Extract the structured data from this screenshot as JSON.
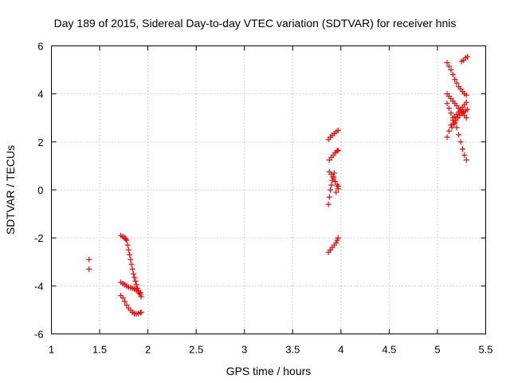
{
  "chart_data": {
    "type": "scatter",
    "title": "Day 189 of 2015, Sidereal Day-to-day VTEC variation (SDTVAR) for receiver hnis",
    "xlabel": "GPS time / hours",
    "ylabel": "SDTVAR / TECUs",
    "xlim": [
      1,
      5.5
    ],
    "ylim": [
      -6,
      6
    ],
    "xticks": [
      "1",
      "1.5",
      "2",
      "2.5",
      "3",
      "3.5",
      "4",
      "4.5",
      "5",
      "5.5"
    ],
    "yticks": [
      "-6",
      "-4",
      "-2",
      "0",
      "2",
      "4",
      "6"
    ],
    "grid": true,
    "marker": "+",
    "marker_color": "#ff0000",
    "series": [
      {
        "points": [
          [
            1.39,
            -2.9
          ],
          [
            1.39,
            -3.3
          ],
          [
            1.72,
            -1.9
          ],
          [
            1.74,
            -1.95
          ],
          [
            1.76,
            -2.0
          ],
          [
            1.77,
            -2.05
          ],
          [
            1.78,
            -2.1
          ],
          [
            1.79,
            -2.3
          ],
          [
            1.8,
            -2.5
          ],
          [
            1.81,
            -2.7
          ],
          [
            1.82,
            -2.9
          ],
          [
            1.83,
            -3.1
          ],
          [
            1.84,
            -3.3
          ],
          [
            1.85,
            -3.5
          ],
          [
            1.86,
            -3.65
          ],
          [
            1.87,
            -3.8
          ],
          [
            1.88,
            -3.95
          ],
          [
            1.89,
            -4.1
          ],
          [
            1.9,
            -4.2
          ],
          [
            1.91,
            -4.3
          ],
          [
            1.92,
            -4.35
          ],
          [
            1.93,
            -4.45
          ],
          [
            1.72,
            -3.85
          ],
          [
            1.74,
            -3.9
          ],
          [
            1.76,
            -3.95
          ],
          [
            1.78,
            -4.0
          ],
          [
            1.8,
            -4.05
          ],
          [
            1.82,
            -4.08
          ],
          [
            1.84,
            -4.1
          ],
          [
            1.86,
            -4.13
          ],
          [
            1.88,
            -4.17
          ],
          [
            1.9,
            -4.22
          ],
          [
            1.92,
            -4.28
          ],
          [
            1.72,
            -4.4
          ],
          [
            1.74,
            -4.5
          ],
          [
            1.76,
            -4.65
          ],
          [
            1.78,
            -4.8
          ],
          [
            1.8,
            -4.92
          ],
          [
            1.82,
            -5.02
          ],
          [
            1.84,
            -5.1
          ],
          [
            1.86,
            -5.15
          ],
          [
            1.88,
            -5.17
          ],
          [
            1.9,
            -5.15
          ],
          [
            1.92,
            -5.12
          ],
          [
            1.93,
            -5.1
          ],
          [
            3.87,
            -2.6
          ],
          [
            3.89,
            -2.5
          ],
          [
            3.91,
            -2.4
          ],
          [
            3.93,
            -2.3
          ],
          [
            3.95,
            -2.2
          ],
          [
            3.96,
            -2.1
          ],
          [
            3.97,
            -2.0
          ],
          [
            3.87,
            -0.6
          ],
          [
            3.88,
            -0.3
          ],
          [
            3.89,
            0.0
          ],
          [
            3.9,
            0.2
          ],
          [
            3.91,
            0.4
          ],
          [
            3.92,
            0.55
          ],
          [
            3.93,
            0.7
          ],
          [
            3.88,
            0.75
          ],
          [
            3.9,
            0.65
          ],
          [
            3.92,
            0.5
          ],
          [
            3.94,
            0.35
          ],
          [
            3.96,
            0.2
          ],
          [
            3.97,
            0.05
          ],
          [
            3.95,
            -0.1
          ],
          [
            3.97,
            0.15
          ],
          [
            3.88,
            1.25
          ],
          [
            3.9,
            1.35
          ],
          [
            3.92,
            1.45
          ],
          [
            3.94,
            1.55
          ],
          [
            3.96,
            1.62
          ],
          [
            3.97,
            1.65
          ],
          [
            3.87,
            2.1
          ],
          [
            3.89,
            2.2
          ],
          [
            3.91,
            2.28
          ],
          [
            3.93,
            2.35
          ],
          [
            3.95,
            2.42
          ],
          [
            3.97,
            2.48
          ],
          [
            5.1,
            5.3
          ],
          [
            5.12,
            5.15
          ],
          [
            5.14,
            5.0
          ],
          [
            5.16,
            4.8
          ],
          [
            5.18,
            4.6
          ],
          [
            5.2,
            4.45
          ],
          [
            5.22,
            4.3
          ],
          [
            5.24,
            4.2
          ],
          [
            5.26,
            4.1
          ],
          [
            5.28,
            4.0
          ],
          [
            5.3,
            3.95
          ],
          [
            5.25,
            5.35
          ],
          [
            5.27,
            5.4
          ],
          [
            5.29,
            5.5
          ],
          [
            5.31,
            5.55
          ],
          [
            5.1,
            4.0
          ],
          [
            5.12,
            3.9
          ],
          [
            5.14,
            3.8
          ],
          [
            5.16,
            3.7
          ],
          [
            5.18,
            3.6
          ],
          [
            5.2,
            3.5
          ],
          [
            5.22,
            3.4
          ],
          [
            5.24,
            3.3
          ],
          [
            5.26,
            3.2
          ],
          [
            5.28,
            3.1
          ],
          [
            5.3,
            3.0
          ],
          [
            5.1,
            3.6
          ],
          [
            5.12,
            3.4
          ],
          [
            5.14,
            3.2
          ],
          [
            5.16,
            3.0
          ],
          [
            5.18,
            2.8
          ],
          [
            5.2,
            2.6
          ],
          [
            5.22,
            2.3
          ],
          [
            5.24,
            2.0
          ],
          [
            5.26,
            1.7
          ],
          [
            5.28,
            1.45
          ],
          [
            5.3,
            1.25
          ],
          [
            5.1,
            2.2
          ],
          [
            5.12,
            2.45
          ],
          [
            5.14,
            2.7
          ],
          [
            5.16,
            2.9
          ],
          [
            5.18,
            3.05
          ],
          [
            5.2,
            3.15
          ],
          [
            5.22,
            3.25
          ],
          [
            5.24,
            3.35
          ],
          [
            5.26,
            3.45
          ],
          [
            5.28,
            3.55
          ],
          [
            5.3,
            3.65
          ],
          [
            5.15,
            2.6
          ],
          [
            5.17,
            2.75
          ],
          [
            5.19,
            2.9
          ],
          [
            5.21,
            3.0
          ],
          [
            5.23,
            3.1
          ],
          [
            5.25,
            3.2
          ],
          [
            5.27,
            3.25
          ],
          [
            5.29,
            3.3
          ],
          [
            5.31,
            3.35
          ]
        ]
      }
    ]
  }
}
